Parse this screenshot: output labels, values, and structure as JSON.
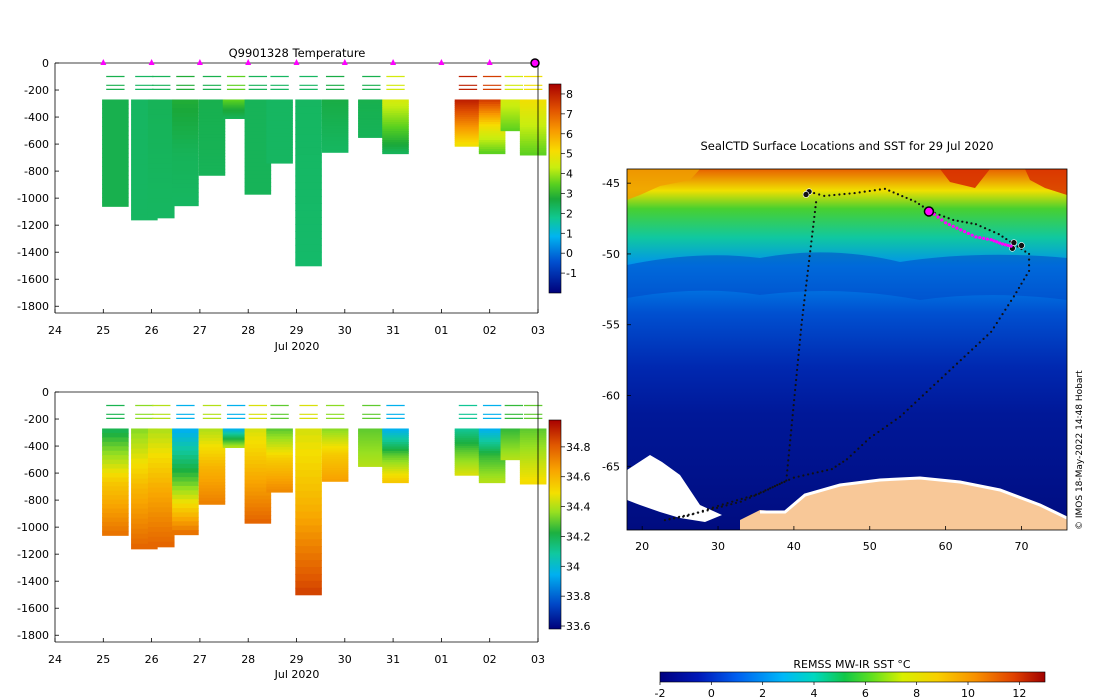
{
  "chart_data": [
    {
      "type": "heatmap",
      "name": "temperature-section",
      "title": "Q9901328  Temperature",
      "xlabel": "Jul 2020",
      "xticks": [
        "24",
        "25",
        "26",
        "27",
        "28",
        "29",
        "30",
        "31",
        "01",
        "02",
        "03"
      ],
      "yticks": [
        0,
        -200,
        -400,
        -600,
        -800,
        -1000,
        -1200,
        -1400,
        -1600,
        -1800
      ],
      "ylim": [
        -1850,
        0
      ],
      "colorbar": {
        "ticks": [
          8,
          7,
          6,
          5,
          4,
          3,
          2,
          1,
          0,
          -1
        ],
        "range": [
          -2,
          8.5
        ]
      },
      "profiles": [
        {
          "day": 25.25,
          "max_depth": 1060,
          "values": [
            2.5,
            2.5
          ]
        },
        {
          "day": 25.85,
          "max_depth": 1160,
          "values": [
            2.3,
            2.3
          ]
        },
        {
          "day": 26.2,
          "max_depth": 1145,
          "values": [
            2.4,
            2.3
          ]
        },
        {
          "day": 26.7,
          "max_depth": 1055,
          "values": [
            2.8,
            2.4,
            2.3
          ]
        },
        {
          "day": 27.25,
          "max_depth": 830,
          "values": [
            2.5,
            2.4
          ]
        },
        {
          "day": 27.75,
          "max_depth": 410,
          "values": [
            3.5,
            2.8,
            2.4
          ]
        },
        {
          "day": 28.2,
          "max_depth": 970,
          "values": [
            2.4,
            2.4
          ]
        },
        {
          "day": 28.65,
          "max_depth": 740,
          "values": [
            2.3,
            2.3
          ]
        },
        {
          "day": 29.25,
          "max_depth": 1500,
          "values": [
            2.3,
            2.2
          ]
        },
        {
          "day": 29.8,
          "max_depth": 660,
          "values": [
            2.6,
            2.3
          ]
        },
        {
          "day": 30.55,
          "max_depth": 550,
          "values": [
            2.5,
            2.4
          ]
        },
        {
          "day": 31.05,
          "max_depth": 670,
          "values": [
            4.5,
            3.5,
            2.4
          ]
        },
        {
          "day": 32.55,
          "max_depth": 615,
          "values": [
            8.0,
            6.5,
            5.0
          ]
        },
        {
          "day": 33.05,
          "max_depth": 670,
          "values": [
            7.5,
            5.0,
            3.5
          ]
        },
        {
          "day": 33.5,
          "max_depth": 500,
          "values": [
            4.5,
            3.5
          ]
        },
        {
          "day": 33.9,
          "max_depth": 680,
          "values": [
            5.0,
            3.5
          ]
        }
      ],
      "markers": [
        25,
        26,
        27,
        28,
        29,
        30,
        31,
        32,
        33
      ],
      "current_marker": 34
    },
    {
      "type": "heatmap",
      "name": "salinity-section",
      "title": "",
      "xlabel": "Jul 2020",
      "xticks": [
        "24",
        "25",
        "26",
        "27",
        "28",
        "29",
        "30",
        "31",
        "01",
        "02",
        "03"
      ],
      "yticks": [
        0,
        -200,
        -400,
        -600,
        -800,
        -1000,
        -1200,
        -1400,
        -1600,
        -1800
      ],
      "ylim": [
        -1850,
        0
      ],
      "colorbar": {
        "ticks": [
          34.8,
          34.6,
          34.4,
          34.2,
          34,
          33.8,
          33.6
        ],
        "range": [
          33.58,
          34.98
        ]
      },
      "profiles": [
        {
          "day": 25.25,
          "max_depth": 1060,
          "values": [
            34.2,
            34.55,
            34.75
          ]
        },
        {
          "day": 25.85,
          "max_depth": 1160,
          "values": [
            34.35,
            34.6,
            34.78
          ]
        },
        {
          "day": 26.2,
          "max_depth": 1145,
          "values": [
            34.4,
            34.62,
            34.78
          ]
        },
        {
          "day": 26.7,
          "max_depth": 1055,
          "values": [
            33.95,
            34.3,
            34.75
          ]
        },
        {
          "day": 27.25,
          "max_depth": 830,
          "values": [
            34.4,
            34.6,
            34.72
          ]
        },
        {
          "day": 27.75,
          "max_depth": 410,
          "values": [
            33.95,
            34.2,
            34.4
          ]
        },
        {
          "day": 28.2,
          "max_depth": 970,
          "values": [
            34.45,
            34.62,
            34.78
          ]
        },
        {
          "day": 28.65,
          "max_depth": 740,
          "values": [
            34.3,
            34.55,
            34.7
          ]
        },
        {
          "day": 29.25,
          "max_depth": 1500,
          "values": [
            34.45,
            34.62,
            34.85
          ]
        },
        {
          "day": 29.8,
          "max_depth": 660,
          "values": [
            34.35,
            34.55,
            34.65
          ]
        },
        {
          "day": 30.55,
          "max_depth": 550,
          "values": [
            34.3,
            34.4
          ]
        },
        {
          "day": 31.05,
          "max_depth": 670,
          "values": [
            33.95,
            34.3,
            34.55
          ]
        },
        {
          "day": 32.55,
          "max_depth": 615,
          "values": [
            34.1,
            34.3,
            34.45
          ]
        },
        {
          "day": 33.05,
          "max_depth": 670,
          "values": [
            33.95,
            34.25,
            34.4
          ]
        },
        {
          "day": 33.5,
          "max_depth": 500,
          "values": [
            34.25,
            34.4
          ]
        },
        {
          "day": 33.9,
          "max_depth": 680,
          "values": [
            34.3,
            34.5
          ]
        }
      ],
      "markers": [],
      "current_marker": null
    },
    {
      "type": "heatmap",
      "name": "sst-map",
      "title": "SealCTD Surface Locations and SST for 29 Jul 2020",
      "xticks": [
        20,
        30,
        40,
        50,
        60,
        70
      ],
      "yticks": [
        -45,
        -50,
        -55,
        -60,
        -65
      ],
      "xlim": [
        18,
        76
      ],
      "ylim": [
        -69.5,
        -44
      ],
      "colorbar_label": "REMSS MW-IR SST °C",
      "colorbar_ticks": [
        -2,
        0,
        2,
        4,
        6,
        8,
        10,
        12
      ],
      "colorbar_range": [
        -2,
        13
      ],
      "track_lon": [
        42,
        44,
        48,
        52,
        56,
        58,
        61,
        64,
        67,
        69,
        71,
        71,
        69,
        66,
        62,
        58,
        54,
        50,
        47,
        45,
        40,
        35,
        30,
        26,
        23,
        28,
        33,
        36,
        39,
        41,
        43
      ],
      "track_lat": [
        -45.6,
        -45.9,
        -45.7,
        -45.4,
        -46.3,
        -47,
        -47.6,
        -47.9,
        -48.6,
        -49.3,
        -50,
        -51.2,
        -53,
        -55.5,
        -57.5,
        -59.5,
        -61.5,
        -63,
        -64.5,
        -65.2,
        -65.8,
        -67,
        -67.8,
        -68.5,
        -68.8,
        -68.2,
        -67.5,
        -66.8,
        -66,
        -55,
        -46
      ],
      "recent_lon": [
        58,
        60,
        62,
        64,
        66,
        67.5,
        69
      ],
      "recent_lat": [
        -47,
        -47.8,
        -48.3,
        -48.8,
        -49,
        -49.3,
        -49.5
      ],
      "current_position": {
        "lon": 57.8,
        "lat": -47
      }
    }
  ],
  "credit": "© IMOS 18-May-2022 14:48 Hobart"
}
